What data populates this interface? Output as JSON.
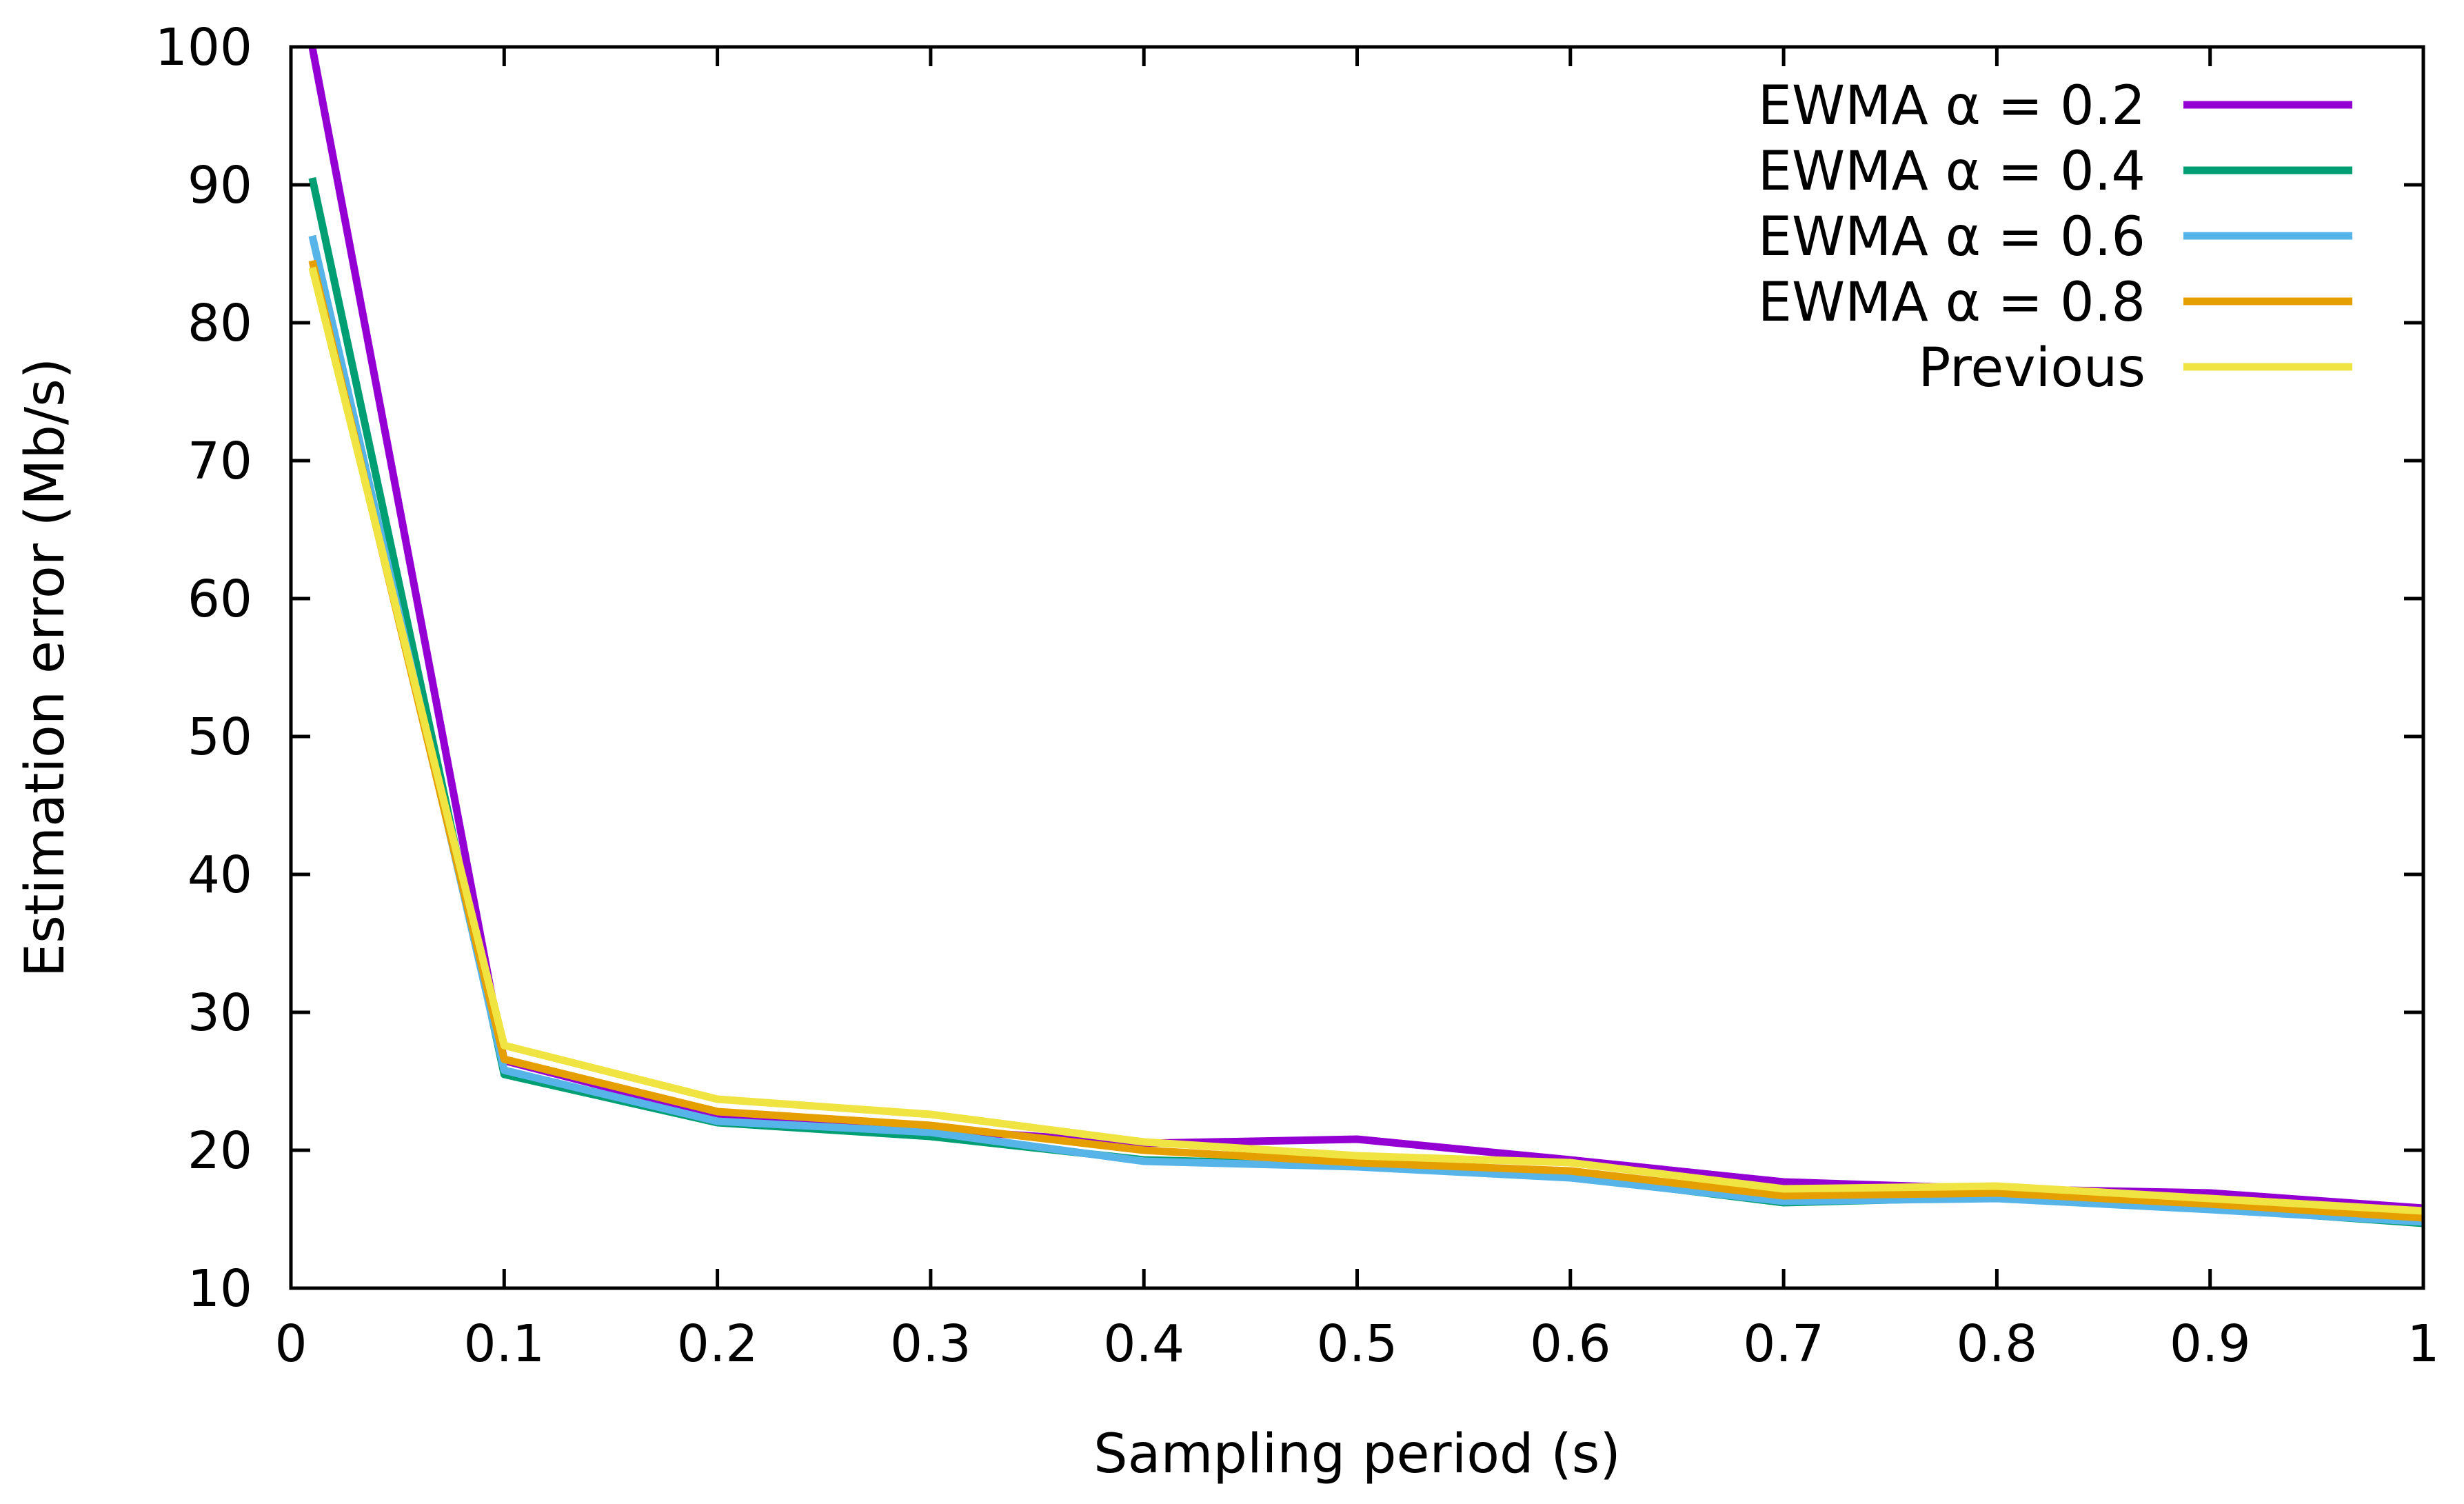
{
  "chart_data": {
    "type": "line",
    "xlabel": "Sampling period (s)",
    "ylabel": "Estimation error (Mb/s)",
    "xlim": [
      0,
      1
    ],
    "ylim": [
      10,
      100
    ],
    "x_ticks": [
      0,
      0.1,
      0.2,
      0.3,
      0.4,
      0.5,
      0.6,
      0.7,
      0.8,
      0.9,
      1
    ],
    "x_tick_labels": [
      "0",
      "0.1",
      "0.2",
      "0.3",
      "0.4",
      "0.5",
      "0.6",
      "0.7",
      "0.8",
      "0.9",
      "1"
    ],
    "y_ticks": [
      10,
      20,
      30,
      40,
      50,
      60,
      70,
      80,
      90,
      100
    ],
    "y_tick_labels": [
      "10",
      "20",
      "30",
      "40",
      "50",
      "60",
      "70",
      "80",
      "90",
      "100"
    ],
    "grid": false,
    "legend_position": "top-right",
    "x": [
      0.01,
      0.1,
      0.2,
      0.3,
      0.4,
      0.5,
      0.6,
      0.7,
      0.8,
      0.9,
      1.0
    ],
    "series": [
      {
        "name": "EWMA α = 0.2",
        "color": "#9400d3",
        "values": [
          100,
          26.5,
          22.5,
          21.5,
          20.5,
          20.8,
          19.3,
          17.7,
          17.2,
          16.9,
          15.8
        ]
      },
      {
        "name": "EWMA α = 0.4",
        "color": "#009e73",
        "values": [
          90.5,
          25.5,
          22.0,
          21.0,
          19.3,
          18.9,
          18.1,
          16.2,
          16.6,
          15.8,
          14.7
        ]
      },
      {
        "name": "EWMA α = 0.6",
        "color": "#56b4e9",
        "values": [
          86.3,
          25.8,
          22.1,
          21.3,
          19.2,
          18.8,
          18.0,
          16.3,
          16.5,
          15.7,
          14.8
        ]
      },
      {
        "name": "EWMA α = 0.8",
        "color": "#e69f00",
        "values": [
          84.5,
          26.6,
          22.8,
          21.8,
          20.0,
          19.1,
          18.5,
          16.7,
          16.9,
          16.1,
          15.1
        ]
      },
      {
        "name": "Previous",
        "color": "#f0e442",
        "values": [
          84.0,
          27.6,
          23.7,
          22.6,
          20.6,
          19.6,
          19.1,
          17.2,
          17.4,
          16.5,
          15.6
        ]
      }
    ]
  }
}
